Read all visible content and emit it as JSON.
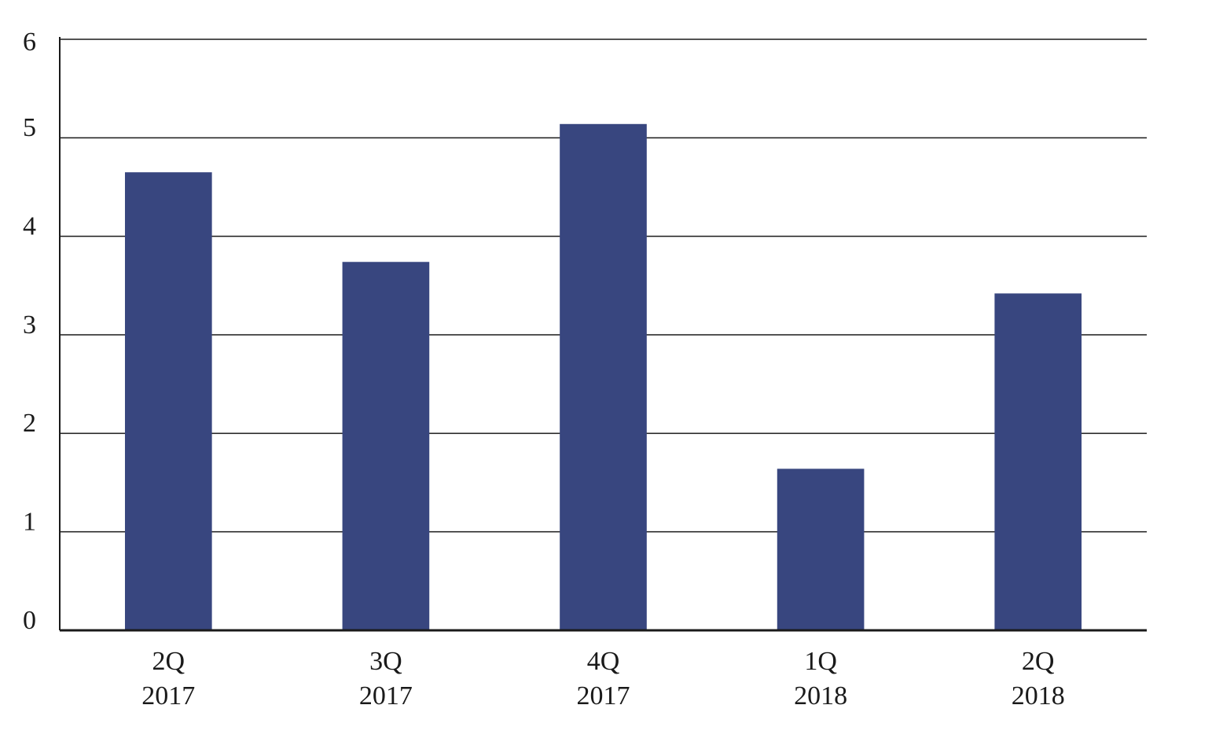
{
  "chart_data": {
    "type": "bar",
    "categories": [
      [
        "2Q",
        "2017"
      ],
      [
        "3Q",
        "2017"
      ],
      [
        "4Q",
        "2017"
      ],
      [
        "1Q",
        "2018"
      ],
      [
        "2Q",
        "2018"
      ]
    ],
    "values": [
      4.65,
      3.74,
      5.14,
      1.64,
      3.42
    ],
    "color": "#38467f",
    "ylim": [
      0,
      6
    ],
    "yticks": [
      0,
      1,
      2,
      3,
      4,
      5,
      6
    ],
    "grid": true
  }
}
